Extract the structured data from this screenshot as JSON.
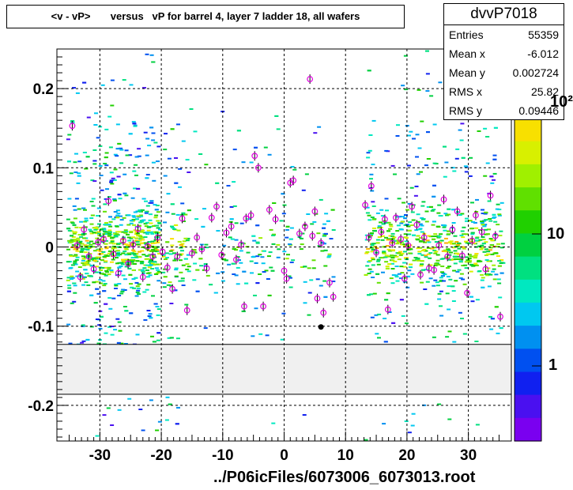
{
  "title": "<v - vP>       versus   vP for barrel 4, layer 7 ladder 18, all wafers",
  "stats": {
    "name": "dvvP7018",
    "rows": [
      {
        "key": "Entries",
        "value": "55359"
      },
      {
        "key": "Mean x",
        "value": "-6.012"
      },
      {
        "key": "Mean y",
        "value": "0.002724"
      },
      {
        "key": "RMS x",
        "value": "25.82"
      },
      {
        "key": "RMS y",
        "value": "0.09446"
      }
    ]
  },
  "footer": "../P06icFiles/6073006_6073013.root",
  "colz_labels": {
    "top": "10²",
    "mid": "10",
    "low": "1"
  },
  "chart_data": {
    "type": "heatmap",
    "title": "<v - vP>       versus   vP for barrel 4, layer 7 ladder 18, all wafers",
    "xlabel": "",
    "ylabel": "",
    "xlim": [
      -37,
      37
    ],
    "ylim": [
      -0.245,
      0.25
    ],
    "x_ticks": [
      -30,
      -20,
      -10,
      0,
      10,
      20,
      30
    ],
    "x_tick_labels": [
      "-30",
      "-20",
      "-10",
      "0",
      "10",
      "20",
      "30"
    ],
    "y_ticks": [
      -0.2,
      -0.1,
      0,
      0.1,
      0.2
    ],
    "y_tick_labels": [
      "-0.2",
      "-0.1",
      "0",
      "0.1",
      "0.2"
    ],
    "grid": true,
    "log_z": true,
    "z_range": [
      1,
      100
    ],
    "excluded_band_y": [
      -0.186,
      -0.123
    ],
    "colors": {
      "excluded_band": "#f0f0f0",
      "profile_marker": "#e000e0",
      "grid": "#000000"
    },
    "profile_points": [
      {
        "x": -34.5,
        "y": 0.153
      },
      {
        "x": -33.7,
        "y": 0.002
      },
      {
        "x": -33.2,
        "y": -0.038
      },
      {
        "x": -32.6,
        "y": 0.022
      },
      {
        "x": -31.8,
        "y": -0.012
      },
      {
        "x": -31.0,
        "y": -0.028
      },
      {
        "x": -30.3,
        "y": 0.006
      },
      {
        "x": -29.4,
        "y": 0.01
      },
      {
        "x": -28.6,
        "y": 0.058
      },
      {
        "x": -27.8,
        "y": -0.009
      },
      {
        "x": -27.0,
        "y": -0.033
      },
      {
        "x": -26.2,
        "y": 0.008
      },
      {
        "x": -25.4,
        "y": -0.021
      },
      {
        "x": -24.6,
        "y": 0.003
      },
      {
        "x": -23.8,
        "y": 0.023
      },
      {
        "x": -23.0,
        "y": -0.038
      },
      {
        "x": -22.2,
        "y": 0.001
      },
      {
        "x": -21.4,
        "y": -0.012
      },
      {
        "x": -20.6,
        "y": 0.012
      },
      {
        "x": -19.8,
        "y": -0.006
      },
      {
        "x": -19.0,
        "y": -0.026
      },
      {
        "x": -18.2,
        "y": -0.053
      },
      {
        "x": -17.4,
        "y": -0.012
      },
      {
        "x": -16.6,
        "y": 0.036
      },
      {
        "x": -15.8,
        "y": -0.08
      },
      {
        "x": -15.0,
        "y": -0.008
      },
      {
        "x": -14.2,
        "y": 0.012
      },
      {
        "x": -13.4,
        "y": -0.003
      },
      {
        "x": -12.6,
        "y": -0.027
      },
      {
        "x": -11.8,
        "y": 0.037
      },
      {
        "x": -11.0,
        "y": 0.051
      },
      {
        "x": -10.2,
        "y": -0.01
      },
      {
        "x": -9.4,
        "y": 0.018
      },
      {
        "x": -8.6,
        "y": 0.026
      },
      {
        "x": -7.8,
        "y": -0.016
      },
      {
        "x": -7.0,
        "y": 0.003
      },
      {
        "x": -6.2,
        "y": 0.036
      },
      {
        "x": -6.5,
        "y": -0.075
      },
      {
        "x": -5.4,
        "y": 0.04
      },
      {
        "x": -4.8,
        "y": 0.115
      },
      {
        "x": -4.2,
        "y": 0.1
      },
      {
        "x": -3.4,
        "y": -0.075
      },
      {
        "x": -2.4,
        "y": 0.047
      },
      {
        "x": -1.4,
        "y": 0.035
      },
      {
        "x": 0.0,
        "y": -0.03
      },
      {
        "x": 0.4,
        "y": -0.04
      },
      {
        "x": 1.0,
        "y": 0.081
      },
      {
        "x": 1.5,
        "y": 0.084
      },
      {
        "x": 2.5,
        "y": 0.017
      },
      {
        "x": 3.4,
        "y": 0.026
      },
      {
        "x": 4.2,
        "y": 0.212
      },
      {
        "x": 4.6,
        "y": 0.014
      },
      {
        "x": 5.0,
        "y": 0.045
      },
      {
        "x": 5.4,
        "y": -0.065
      },
      {
        "x": 6.0,
        "y": 0.005
      },
      {
        "x": 6.4,
        "y": -0.083
      },
      {
        "x": 7.4,
        "y": -0.045
      },
      {
        "x": 8.0,
        "y": -0.063
      },
      {
        "x": 13.2,
        "y": 0.053
      },
      {
        "x": 13.8,
        "y": 0.012
      },
      {
        "x": 14.2,
        "y": 0.077
      },
      {
        "x": 15.0,
        "y": -0.007
      },
      {
        "x": 15.8,
        "y": 0.019
      },
      {
        "x": 16.4,
        "y": 0.035
      },
      {
        "x": 16.9,
        "y": -0.079
      },
      {
        "x": 17.6,
        "y": 0.005
      },
      {
        "x": 18.2,
        "y": 0.037
      },
      {
        "x": 19.0,
        "y": 0.01
      },
      {
        "x": 19.6,
        "y": -0.04
      },
      {
        "x": 20.2,
        "y": 0.002
      },
      {
        "x": 20.8,
        "y": 0.051
      },
      {
        "x": 21.6,
        "y": 0.028
      },
      {
        "x": 22.2,
        "y": -0.035
      },
      {
        "x": 22.8,
        "y": 0.012
      },
      {
        "x": 23.6,
        "y": -0.027
      },
      {
        "x": 24.4,
        "y": -0.029
      },
      {
        "x": 25.2,
        "y": 0.002
      },
      {
        "x": 26.0,
        "y": 0.06
      },
      {
        "x": 26.6,
        "y": -0.012
      },
      {
        "x": 27.4,
        "y": 0.022
      },
      {
        "x": 28.2,
        "y": 0.045
      },
      {
        "x": 29.0,
        "y": -0.011
      },
      {
        "x": 29.8,
        "y": -0.058
      },
      {
        "x": 30.6,
        "y": 0.008
      },
      {
        "x": 31.2,
        "y": 0.04
      },
      {
        "x": 32.2,
        "y": 0.019
      },
      {
        "x": 32.8,
        "y": -0.028
      },
      {
        "x": 33.6,
        "y": 0.065
      },
      {
        "x": 34.4,
        "y": 0.014
      },
      {
        "x": 35.2,
        "y": -0.088
      }
    ],
    "special_points": [
      {
        "x": 6.0,
        "y": -0.101
      }
    ]
  }
}
